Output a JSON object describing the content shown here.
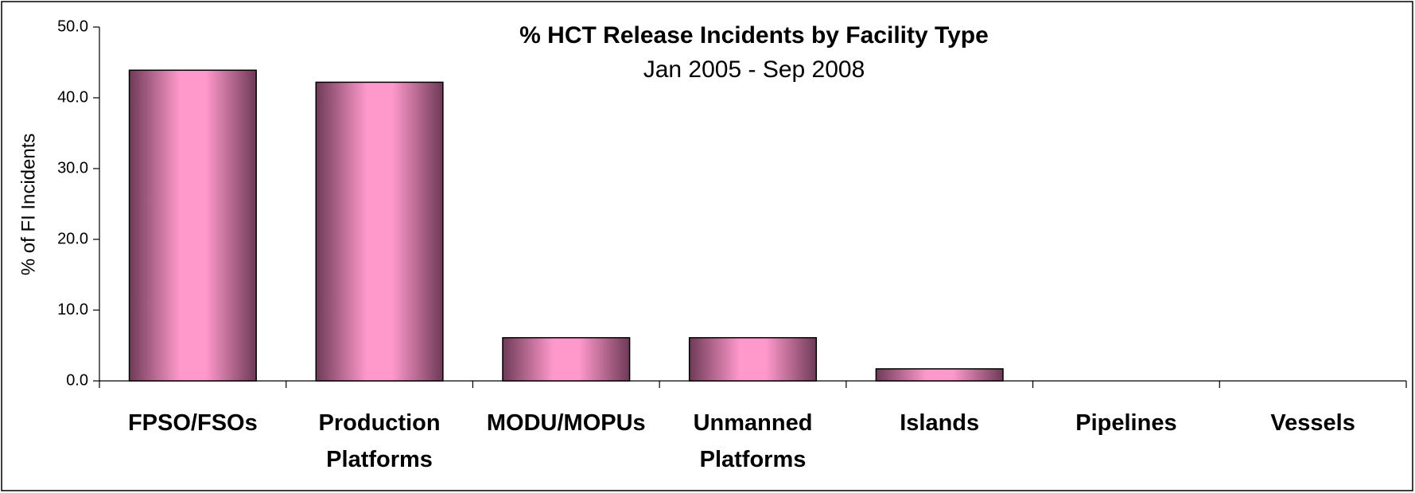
{
  "chart_data": {
    "type": "bar",
    "title": "% HCT Release Incidents by Facility Type",
    "subtitle": "Jan 2005 - Sep 2008",
    "y_label": "% of FI Incidents",
    "categories": [
      "FPSO/FSOs",
      "Production Platforms",
      "MODU/MOPUs",
      "Unmanned Platforms",
      "Islands",
      "Pipelines",
      "Vessels"
    ],
    "values": [
      43.9,
      42.2,
      6.1,
      6.1,
      1.7,
      0,
      0
    ],
    "color": "#ff99cc",
    "ylim": [
      0,
      50
    ],
    "yticks": [
      {
        "value": 0,
        "label": "0.0"
      },
      {
        "value": 10,
        "label": "10.0"
      },
      {
        "value": 20,
        "label": "20.0"
      },
      {
        "value": 30,
        "label": "30.0"
      },
      {
        "value": 40,
        "label": "40.0"
      },
      {
        "value": 50,
        "label": "50.0"
      }
    ],
    "grid": false
  }
}
